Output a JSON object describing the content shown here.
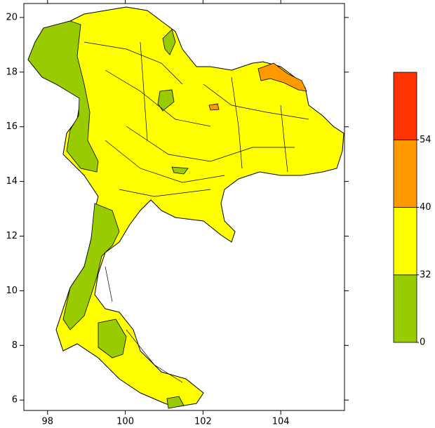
{
  "map": {
    "xlim": [
      97.39,
      105.64
    ],
    "ylim": [
      5.62,
      20.51
    ],
    "xticks": [
      98,
      100,
      102,
      104
    ],
    "yticks": [
      6,
      8,
      10,
      12,
      14,
      16,
      18,
      20
    ],
    "colorbar": {
      "levels": [
        0,
        32,
        40,
        54
      ],
      "colors": [
        "#99cc00",
        "#ffff00",
        "#ff9900",
        "#ff3300"
      ]
    }
  }
}
